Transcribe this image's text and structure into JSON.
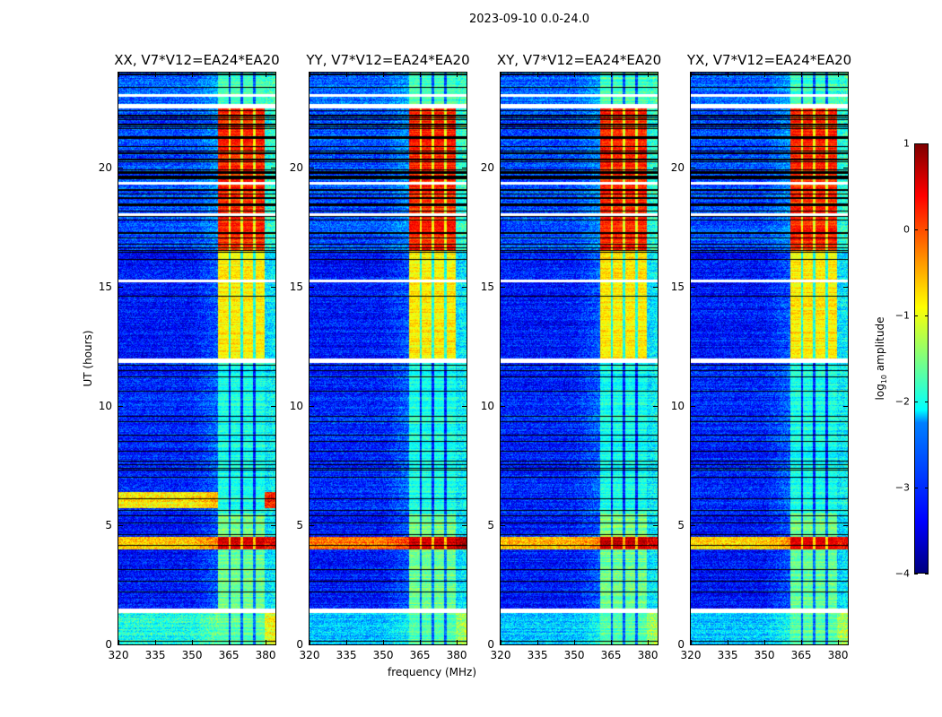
{
  "chart_data": {
    "type": "heatmap",
    "title": "2023-09-10 0.0-24.0",
    "xlabel": "frequency (MHz)",
    "ylabel": "UT (hours)",
    "xlim": [
      320,
      384
    ],
    "ylim": [
      0,
      24
    ],
    "xticks": [
      320,
      335,
      350,
      365,
      380
    ],
    "yticks": [
      0,
      5,
      10,
      15,
      20
    ],
    "colorbar": {
      "label_prefix": "log",
      "label_sub": "10",
      "label_suffix": " amplitude",
      "range": [
        -4,
        1
      ],
      "ticks": [
        1,
        0,
        -1,
        -2,
        -3,
        -4
      ],
      "tick_labels": [
        "1",
        "0",
        "−1",
        "−2",
        "−3",
        "−4"
      ],
      "colormap": "jet"
    },
    "band": {
      "start_mhz": 360.5,
      "end_mhz": 379.7,
      "gaps_mhz": [
        365.3,
        370.3,
        375.3
      ]
    },
    "flagged_hours": [
      [
        1.3,
        1.5
      ],
      [
        11.8,
        12.0
      ],
      [
        22.5,
        22.7
      ],
      [
        23.0,
        23.1
      ],
      [
        18.0,
        18.1
      ],
      [
        15.2,
        15.3
      ],
      [
        19.3,
        19.4
      ]
    ],
    "segments": [
      {
        "from": 0,
        "to": 1.3,
        "background": -2.4,
        "band": -1.7
      },
      {
        "from": 1.5,
        "to": 4.0,
        "background": -3.3,
        "band": -1.6
      },
      {
        "from": 4.0,
        "to": 4.5,
        "background": -0.6,
        "band": 0.6
      },
      {
        "from": 4.5,
        "to": 5.5,
        "background": -3.3,
        "band": -1.5
      },
      {
        "from": 5.5,
        "to": 11.8,
        "background": -3.2,
        "band": -2.0
      },
      {
        "from": 12.0,
        "to": 16.5,
        "background": -3.3,
        "band": -0.8
      },
      {
        "from": 16.5,
        "to": 22.5,
        "background": -3.0,
        "band": 0.2
      },
      {
        "from": 22.5,
        "to": 24,
        "background": -2.9,
        "band": -1.8
      }
    ],
    "panels": [
      {
        "title": "XX, V7*V12=EA24*EA20",
        "overrides": [
          {
            "from": 5.7,
            "to": 6.4,
            "background": -0.8
          },
          {
            "from": 0,
            "to": 1.3,
            "background": -2.0
          }
        ]
      },
      {
        "title": "YY, V7*V12=EA24*EA20",
        "overrides": [
          {
            "from": 4.0,
            "to": 4.5,
            "background": -0.2
          }
        ]
      },
      {
        "title": "XY, V7*V12=EA24*EA20",
        "overrides": []
      },
      {
        "title": "YX, V7*V12=EA24*EA20",
        "overrides": []
      }
    ]
  }
}
